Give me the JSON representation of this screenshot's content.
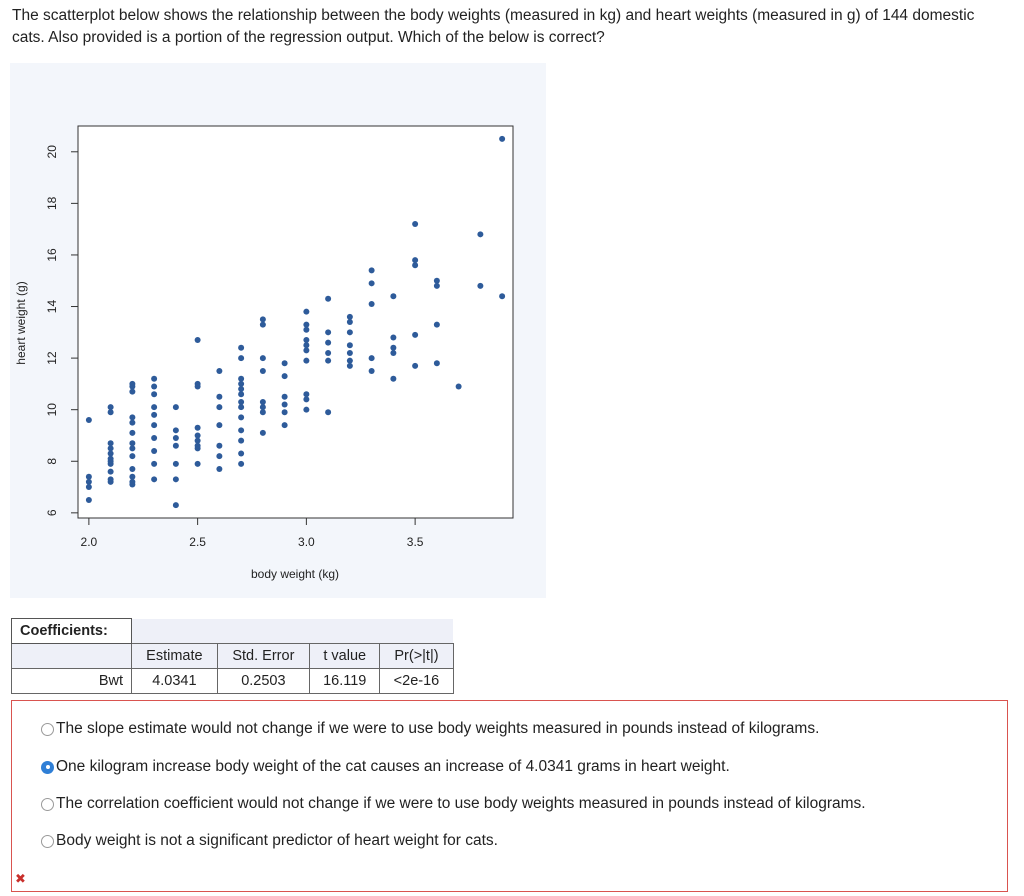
{
  "question": {
    "text": "The scatterplot below shows the relationship between the body weights (measured in kg) and heart weights (measured in g) of 144 domestic cats. Also provided is a portion of the regression output. Which of the below is correct?"
  },
  "chart_data": {
    "type": "scatter",
    "xlabel": "body weight (kg)",
    "ylabel": "heart weight (g)",
    "xlim": [
      1.95,
      3.95
    ],
    "ylim": [
      5.8,
      21.0
    ],
    "xticks": [
      "2.0",
      "2.5",
      "3.0",
      "3.5"
    ],
    "xtick_values": [
      2.0,
      2.5,
      3.0,
      3.5
    ],
    "yticks": [
      "6",
      "8",
      "10",
      "12",
      "14",
      "16",
      "18",
      "20"
    ],
    "ytick_values": [
      6,
      8,
      10,
      12,
      14,
      16,
      18,
      20
    ],
    "point_color": "#2e5b9a",
    "points": [
      [
        2.0,
        6.5
      ],
      [
        2.0,
        7.0
      ],
      [
        2.0,
        7.2
      ],
      [
        2.0,
        7.4
      ],
      [
        2.0,
        9.6
      ],
      [
        2.1,
        7.2
      ],
      [
        2.1,
        7.3
      ],
      [
        2.1,
        7.6
      ],
      [
        2.1,
        7.9
      ],
      [
        2.1,
        8.0
      ],
      [
        2.1,
        8.1
      ],
      [
        2.1,
        8.3
      ],
      [
        2.1,
        8.5
      ],
      [
        2.1,
        8.7
      ],
      [
        2.1,
        9.9
      ],
      [
        2.1,
        10.1
      ],
      [
        2.2,
        7.1
      ],
      [
        2.2,
        7.2
      ],
      [
        2.2,
        7.4
      ],
      [
        2.2,
        7.7
      ],
      [
        2.2,
        8.2
      ],
      [
        2.2,
        8.5
      ],
      [
        2.2,
        8.7
      ],
      [
        2.2,
        9.1
      ],
      [
        2.2,
        9.5
      ],
      [
        2.2,
        9.7
      ],
      [
        2.2,
        10.7
      ],
      [
        2.2,
        10.9
      ],
      [
        2.2,
        11.0
      ],
      [
        2.3,
        7.3
      ],
      [
        2.3,
        7.9
      ],
      [
        2.3,
        8.4
      ],
      [
        2.3,
        8.9
      ],
      [
        2.3,
        9.4
      ],
      [
        2.3,
        9.8
      ],
      [
        2.3,
        10.1
      ],
      [
        2.3,
        10.6
      ],
      [
        2.3,
        10.9
      ],
      [
        2.3,
        11.2
      ],
      [
        2.4,
        6.3
      ],
      [
        2.4,
        7.3
      ],
      [
        2.4,
        7.9
      ],
      [
        2.4,
        8.6
      ],
      [
        2.4,
        8.9
      ],
      [
        2.4,
        9.2
      ],
      [
        2.4,
        10.1
      ],
      [
        2.5,
        7.9
      ],
      [
        2.5,
        8.5
      ],
      [
        2.5,
        8.6
      ],
      [
        2.5,
        8.8
      ],
      [
        2.5,
        9.0
      ],
      [
        2.5,
        9.3
      ],
      [
        2.5,
        10.9
      ],
      [
        2.5,
        11.0
      ],
      [
        2.5,
        12.7
      ],
      [
        2.6,
        7.7
      ],
      [
        2.6,
        8.2
      ],
      [
        2.6,
        8.6
      ],
      [
        2.6,
        9.4
      ],
      [
        2.6,
        10.1
      ],
      [
        2.6,
        10.5
      ],
      [
        2.6,
        11.5
      ],
      [
        2.7,
        7.9
      ],
      [
        2.7,
        8.3
      ],
      [
        2.7,
        8.8
      ],
      [
        2.7,
        9.2
      ],
      [
        2.7,
        9.7
      ],
      [
        2.7,
        10.1
      ],
      [
        2.7,
        10.3
      ],
      [
        2.7,
        10.6
      ],
      [
        2.7,
        10.8
      ],
      [
        2.7,
        11.0
      ],
      [
        2.7,
        11.2
      ],
      [
        2.7,
        12.0
      ],
      [
        2.7,
        12.4
      ],
      [
        2.8,
        9.1
      ],
      [
        2.8,
        9.9
      ],
      [
        2.8,
        10.1
      ],
      [
        2.8,
        10.3
      ],
      [
        2.8,
        11.5
      ],
      [
        2.8,
        12.0
      ],
      [
        2.8,
        13.3
      ],
      [
        2.8,
        13.5
      ],
      [
        2.9,
        9.4
      ],
      [
        2.9,
        9.9
      ],
      [
        2.9,
        10.2
      ],
      [
        2.9,
        10.5
      ],
      [
        2.9,
        11.3
      ],
      [
        2.9,
        11.8
      ],
      [
        3.0,
        10.0
      ],
      [
        3.0,
        10.4
      ],
      [
        3.0,
        10.6
      ],
      [
        3.0,
        11.9
      ],
      [
        3.0,
        12.3
      ],
      [
        3.0,
        12.5
      ],
      [
        3.0,
        12.7
      ],
      [
        3.0,
        13.1
      ],
      [
        3.0,
        13.3
      ],
      [
        3.0,
        13.8
      ],
      [
        3.1,
        9.9
      ],
      [
        3.1,
        11.9
      ],
      [
        3.1,
        12.2
      ],
      [
        3.1,
        12.6
      ],
      [
        3.1,
        13.0
      ],
      [
        3.1,
        14.3
      ],
      [
        3.2,
        11.7
      ],
      [
        3.2,
        11.9
      ],
      [
        3.2,
        12.2
      ],
      [
        3.2,
        12.5
      ],
      [
        3.2,
        13.0
      ],
      [
        3.2,
        13.4
      ],
      [
        3.2,
        13.6
      ],
      [
        3.3,
        11.5
      ],
      [
        3.3,
        12.0
      ],
      [
        3.3,
        14.1
      ],
      [
        3.3,
        14.9
      ],
      [
        3.3,
        15.4
      ],
      [
        3.4,
        11.2
      ],
      [
        3.4,
        12.2
      ],
      [
        3.4,
        12.4
      ],
      [
        3.4,
        12.8
      ],
      [
        3.4,
        14.4
      ],
      [
        3.5,
        11.7
      ],
      [
        3.5,
        12.9
      ],
      [
        3.5,
        15.6
      ],
      [
        3.5,
        15.8
      ],
      [
        3.5,
        17.2
      ],
      [
        3.6,
        11.8
      ],
      [
        3.6,
        13.3
      ],
      [
        3.6,
        14.8
      ],
      [
        3.6,
        15.0
      ],
      [
        3.7,
        10.9
      ],
      [
        3.8,
        14.8
      ],
      [
        3.8,
        16.8
      ],
      [
        3.9,
        14.4
      ],
      [
        3.9,
        20.5
      ]
    ]
  },
  "coefficients": {
    "title": "Coefficients:",
    "headers": [
      "Estimate",
      "Std. Error",
      "t value",
      "Pr(>|t|)"
    ],
    "row_label": "Bwt",
    "values": [
      "4.0341",
      "0.2503",
      "16.119",
      "<2e-16"
    ]
  },
  "answers": {
    "options": [
      {
        "label": "The slope estimate would not change if we were to use body weights measured in pounds instead of kilograms.",
        "selected": false
      },
      {
        "label": "One kilogram increase body weight of the cat causes an increase of 4.0341 grams in heart weight.",
        "selected": true
      },
      {
        "label": "The correlation coefficient would not change if we were to use body weights measured in pounds instead of kilograms.",
        "selected": false
      },
      {
        "label": "Body weight is not a significant predictor of heart weight for cats.",
        "selected": false
      }
    ],
    "status_icon": "wrong-icon"
  }
}
